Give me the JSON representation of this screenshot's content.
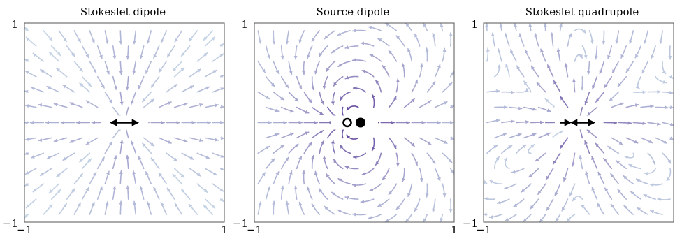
{
  "panels": [
    {
      "title": "Stokeslet dipole",
      "field": "stokeslet-dipole",
      "y_top_label": "1",
      "y_bottom_label": "−1",
      "x_left_label": "−1",
      "x_right_label": "1",
      "x_range": [
        -1,
        1
      ],
      "y_range": [
        -1,
        1
      ],
      "marker": "double-headed arrow"
    },
    {
      "title": "Source dipole",
      "field": "source-dipole",
      "y_top_label": "1",
      "y_bottom_label": "−1",
      "x_left_label": "−1",
      "x_right_label": "1",
      "x_range": [
        -1,
        1
      ],
      "y_range": [
        -1,
        1
      ],
      "marker": "sink and source dots"
    },
    {
      "title": "Stokeslet quadrupole",
      "field": "stokeslet-quadrupole",
      "y_top_label": "1",
      "y_bottom_label": "−1",
      "x_left_label": "−1",
      "x_right_label": "",
      "x_range": [
        -1,
        1
      ],
      "y_range": [
        -1,
        1
      ],
      "marker": "arrow into double-headed arrow"
    }
  ],
  "colors": {
    "strong": "#4a1486",
    "medium": "#6a51a3",
    "light": "#9e9ac8",
    "faint": "#c6d6e6",
    "marker": "#000000"
  }
}
